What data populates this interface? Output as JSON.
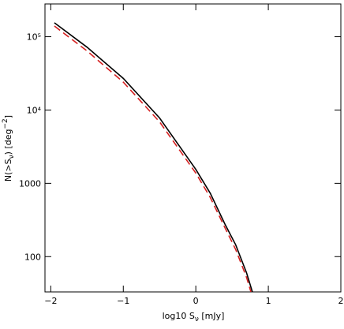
{
  "chart_data": {
    "type": "line",
    "x_label_parts": [
      "log10 S",
      "ν",
      " [mJy]"
    ],
    "y_label_parts": [
      "N(>S",
      "ν",
      ") [deg",
      "−2",
      "]"
    ],
    "xlim": [
      -2.08,
      2.0
    ],
    "xticks": [
      {
        "value": -2,
        "label": "−2"
      },
      {
        "value": -1,
        "label": "−1"
      },
      0,
      1,
      2
    ],
    "ylim": [
      33,
      280000
    ],
    "log_y": true,
    "yticks": [
      100,
      1000,
      {
        "value": 10000,
        "label": "10⁴"
      },
      {
        "value": 100000,
        "label": "10⁵"
      }
    ],
    "series": [
      {
        "color": "#000000",
        "dash": false,
        "x": [
          -1.95,
          -1.5,
          -1.0,
          -0.5,
          0.0,
          0.2,
          0.4,
          0.55,
          0.7,
          0.78
        ],
        "values": [
          155000,
          72000,
          27000,
          7800,
          1550,
          730,
          280,
          145,
          60,
          33
        ]
      },
      {
        "color": "#d62020",
        "dash": true,
        "x": [
          -1.95,
          -1.5,
          -1.0,
          -0.5,
          0.0,
          0.2,
          0.4,
          0.55,
          0.7,
          0.76
        ],
        "values": [
          140000,
          64000,
          24000,
          6900,
          1380,
          640,
          250,
          125,
          52,
          33
        ]
      }
    ]
  }
}
